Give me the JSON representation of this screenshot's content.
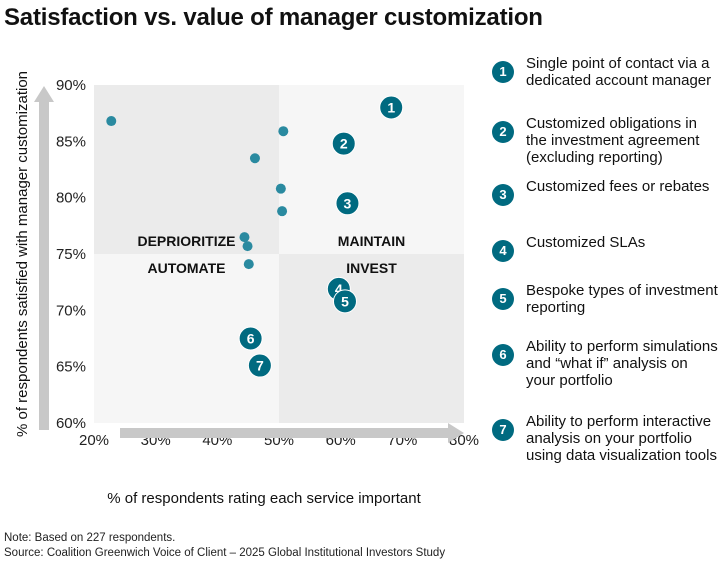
{
  "chart_data": {
    "type": "scatter",
    "title": "Satisfaction vs. value of manager customization",
    "xlabel": "% of respondents rating each service important",
    "ylabel": "% of respondents satisfied with manager customization",
    "xlim": [
      20,
      80
    ],
    "ylim": [
      60,
      90
    ],
    "x_ticks": [
      "20%",
      "30%",
      "40%",
      "50%",
      "60%",
      "70%",
      "80%"
    ],
    "y_ticks": [
      "90%",
      "85%",
      "80%",
      "75%",
      "70%",
      "65%",
      "60%"
    ],
    "quadrant_divider": {
      "x": 50,
      "y": 75
    },
    "quadrants": [
      "DEPRIORITIZE",
      "MAINTAIN",
      "AUTOMATE",
      "INVEST"
    ],
    "other_points": [
      {
        "x": 22.8,
        "y": 86.8
      },
      {
        "x": 50.7,
        "y": 85.9
      },
      {
        "x": 46.1,
        "y": 83.5
      },
      {
        "x": 50.3,
        "y": 80.8
      },
      {
        "x": 50.5,
        "y": 78.8
      },
      {
        "x": 44.4,
        "y": 76.5
      },
      {
        "x": 44.9,
        "y": 75.7
      },
      {
        "x": 45.1,
        "y": 74.1
      }
    ],
    "highlighted_points": [
      {
        "label": "1",
        "x": 68.2,
        "y": 88.0
      },
      {
        "label": "2",
        "x": 60.5,
        "y": 84.8
      },
      {
        "label": "3",
        "x": 61.1,
        "y": 79.5
      },
      {
        "label": "4",
        "x": 59.7,
        "y": 71.9
      },
      {
        "label": "5",
        "x": 60.7,
        "y": 70.8
      },
      {
        "label": "6",
        "x": 45.4,
        "y": 67.5
      },
      {
        "label": "7",
        "x": 46.9,
        "y": 65.1
      }
    ],
    "colors": {
      "highlight": "#006a80",
      "other": "#2a8aa0",
      "quad_dark": "#ebebeb",
      "quad_light": "#f6f6f6",
      "arrow": "#c8c8c8"
    }
  },
  "legend": [
    {
      "num": "1",
      "text": "Single point of contact via a dedicated account manager"
    },
    {
      "num": "2",
      "text": "Customized obligations in the investment agreement (excluding reporting)"
    },
    {
      "num": "3",
      "text": "Customized fees or rebates"
    },
    {
      "num": "4",
      "text": "Customized SLAs"
    },
    {
      "num": "5",
      "text": "Bespoke types of investment reporting"
    },
    {
      "num": "6",
      "text": "Ability to perform simulations and “what if” analysis on your portfolio"
    },
    {
      "num": "7",
      "text": "Ability to perform interactive analysis on your portfolio using data visualization tools"
    }
  ],
  "note": "Note: Based on 227 respondents.",
  "source": "Source: Coalition Greenwich Voice of Client – 2025 Global Institutional Investors Study"
}
